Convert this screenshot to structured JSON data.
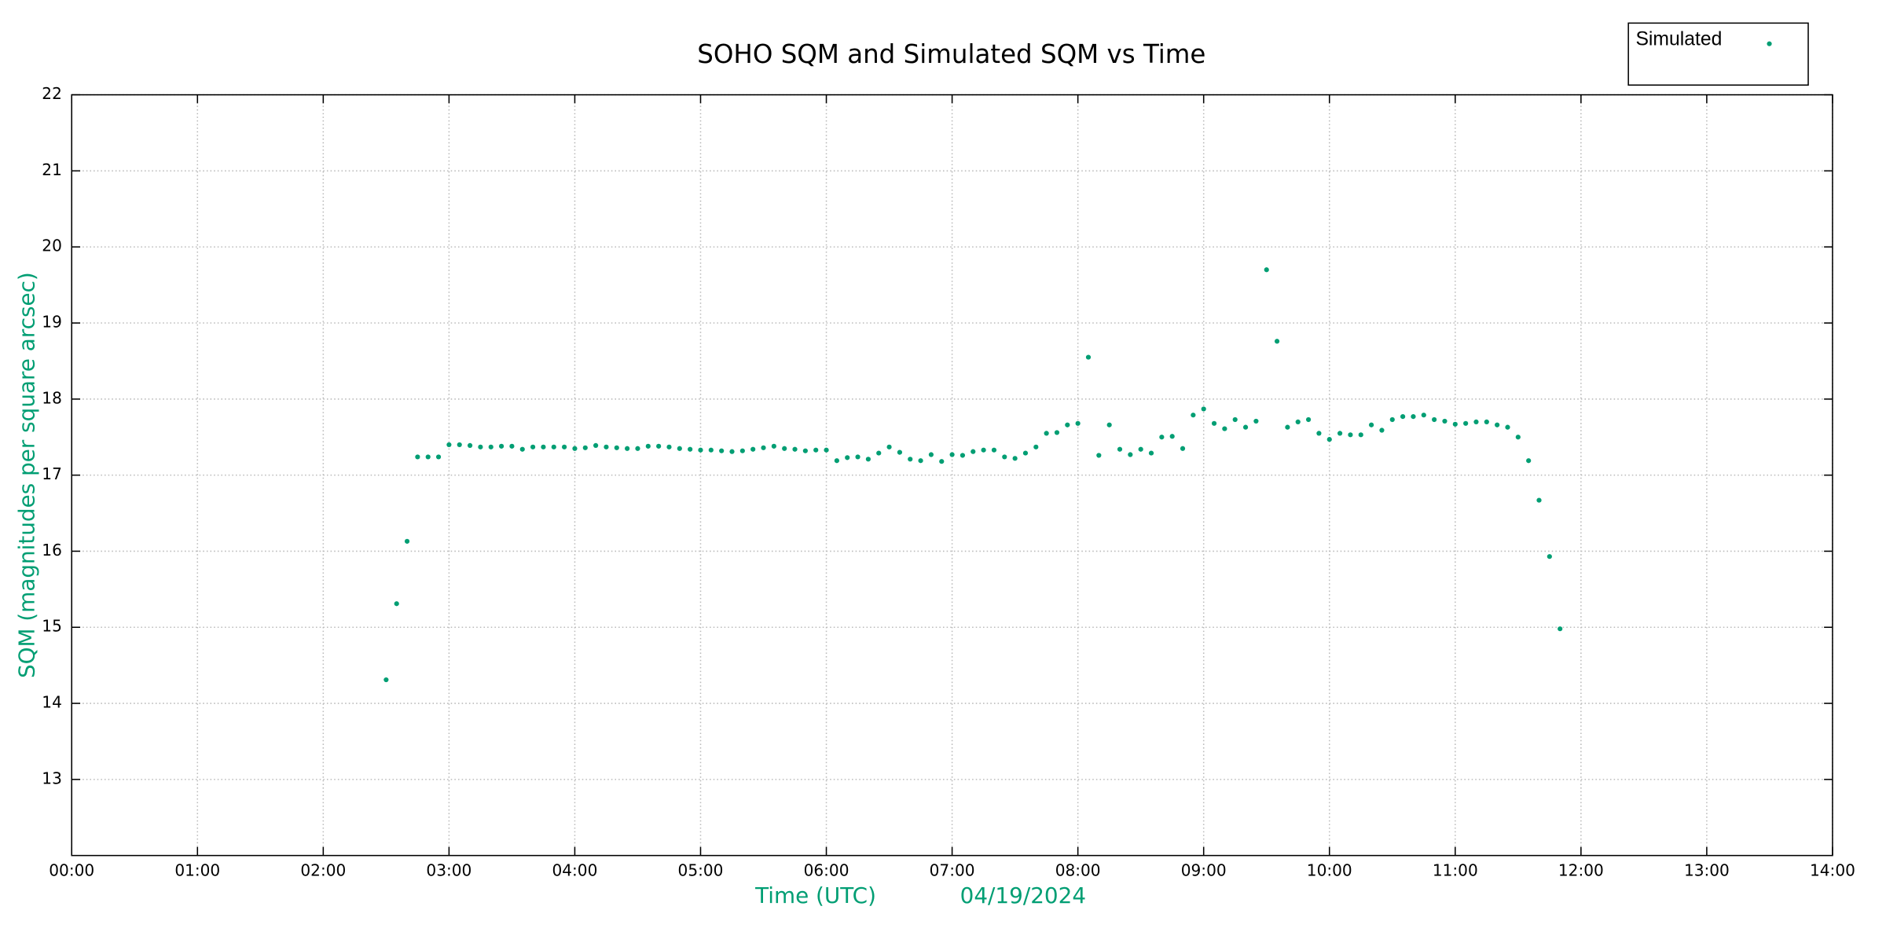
{
  "chart_data": {
    "type": "scatter",
    "title": "SOHO SQM and Simulated SQM vs Time",
    "xlabel": "Time (UTC)",
    "date": "04/19/2024",
    "ylabel": "SQM (magnitudes per square arcsec)",
    "xlim": [
      "00:00",
      "14:00"
    ],
    "xticks": [
      "00:00",
      "01:00",
      "02:00",
      "03:00",
      "04:00",
      "05:00",
      "06:00",
      "07:00",
      "08:00",
      "09:00",
      "10:00",
      "11:00",
      "12:00",
      "13:00",
      "14:00"
    ],
    "ylim": [
      12,
      22
    ],
    "yticks": [
      13,
      14,
      15,
      16,
      17,
      18,
      19,
      20,
      21,
      22
    ],
    "grid": true,
    "legend": "upper right",
    "label_color": "#009e73",
    "x": [
      "02:30",
      "02:35",
      "02:40",
      "02:45",
      "02:50",
      "02:55",
      "03:00",
      "03:05",
      "03:10",
      "03:15",
      "03:20",
      "03:25",
      "03:30",
      "03:35",
      "03:40",
      "03:45",
      "03:50",
      "03:55",
      "04:00",
      "04:05",
      "04:10",
      "04:15",
      "04:20",
      "04:25",
      "04:30",
      "04:35",
      "04:40",
      "04:45",
      "04:50",
      "04:55",
      "05:00",
      "05:05",
      "05:10",
      "05:15",
      "05:20",
      "05:25",
      "05:30",
      "05:35",
      "05:40",
      "05:45",
      "05:50",
      "05:55",
      "06:00",
      "06:05",
      "06:10",
      "06:15",
      "06:20",
      "06:25",
      "06:30",
      "06:35",
      "06:40",
      "06:45",
      "06:50",
      "06:55",
      "07:00",
      "07:05",
      "07:10",
      "07:15",
      "07:20",
      "07:25",
      "07:30",
      "07:35",
      "07:40",
      "07:45",
      "07:50",
      "07:55",
      "08:00",
      "08:05",
      "08:10",
      "08:15",
      "08:20",
      "08:25",
      "08:30",
      "08:35",
      "08:40",
      "08:45",
      "08:50",
      "08:55",
      "09:00",
      "09:05",
      "09:10",
      "09:15",
      "09:20",
      "09:25",
      "09:30",
      "09:35",
      "09:40",
      "09:45",
      "09:50",
      "09:55",
      "10:00",
      "10:05",
      "10:10",
      "10:15",
      "10:20",
      "10:25",
      "10:30",
      "10:35",
      "10:40",
      "10:45",
      "10:50",
      "10:55",
      "11:00",
      "11:05",
      "11:10",
      "11:15",
      "11:20",
      "11:25",
      "11:30",
      "11:35",
      "11:40",
      "11:45",
      "11:50"
    ],
    "series": [
      {
        "name": "Simulated",
        "color": "#009e73",
        "values": [
          14.31,
          15.31,
          16.13,
          17.24,
          17.24,
          17.24,
          17.4,
          17.4,
          17.39,
          17.37,
          17.37,
          17.38,
          17.38,
          17.34,
          17.37,
          17.37,
          17.37,
          17.37,
          17.35,
          17.36,
          17.39,
          17.37,
          17.36,
          17.35,
          17.35,
          17.38,
          17.38,
          17.37,
          17.35,
          17.34,
          17.33,
          17.33,
          17.32,
          17.31,
          17.32,
          17.34,
          17.36,
          17.38,
          17.35,
          17.34,
          17.32,
          17.33,
          17.33,
          17.19,
          17.23,
          17.24,
          17.21,
          17.29,
          17.37,
          17.3,
          17.21,
          17.19,
          17.27,
          17.18,
          17.27,
          17.26,
          17.31,
          17.33,
          17.33,
          17.24,
          17.22,
          17.29,
          17.37,
          17.55,
          17.56,
          17.66,
          17.68,
          18.55,
          17.26,
          17.66,
          17.34,
          17.27,
          17.34,
          17.29,
          17.5,
          17.51,
          17.35,
          17.79,
          17.87,
          17.68,
          17.61,
          17.73,
          17.63,
          17.71,
          19.7,
          18.76,
          17.63,
          17.7,
          17.73,
          17.55,
          17.47,
          17.55,
          17.53,
          17.53,
          17.66,
          17.59,
          17.73,
          17.77,
          17.77,
          17.79,
          17.73,
          17.71,
          17.67,
          17.68,
          17.7,
          17.7,
          17.66,
          17.63,
          17.5,
          17.19,
          16.67,
          15.93,
          14.98
        ]
      }
    ]
  }
}
